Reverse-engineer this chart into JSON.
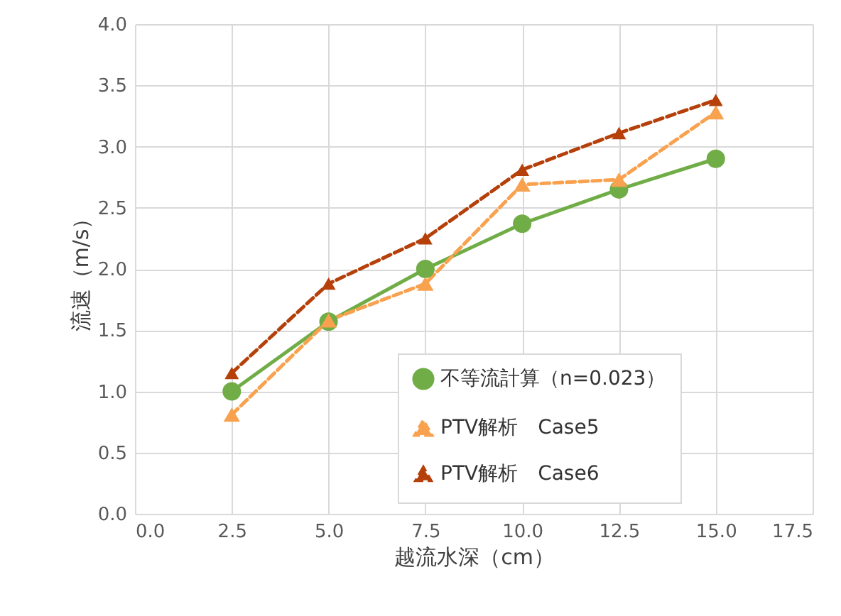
{
  "chart_data": {
    "type": "line",
    "xlabel": "越流水深（cm）",
    "ylabel": "流速（m/s）",
    "x": [
      2.5,
      5,
      7.5,
      10,
      12.5,
      15
    ],
    "series": [
      {
        "name": "不等流計算（n=0.023）",
        "color": "#70ad47",
        "values": [
          1.0,
          1.57,
          2.0,
          2.37,
          2.65,
          2.9
        ],
        "marker": "circle",
        "line_style": "solid"
      },
      {
        "name": "PTV解析　Case5",
        "color": "#f8a14e",
        "values": [
          0.81,
          1.58,
          1.88,
          2.69,
          2.73,
          3.28
        ],
        "marker": "triangle",
        "line_style": "dashed"
      },
      {
        "name": "PTV解析　Case6",
        "color": "#b5400a",
        "values": [
          1.15,
          1.88,
          2.25,
          2.81,
          3.11,
          3.38
        ],
        "marker": "triangle",
        "line_style": "dashed"
      }
    ],
    "xlim": [
      0,
      17.5
    ],
    "xticks": [
      {
        "value": 0,
        "label": "0.0"
      },
      2.5,
      {
        "value": 5,
        "label": "5.0"
      },
      7.5,
      {
        "value": 10,
        "label": "10.0"
      },
      12.5,
      {
        "value": 15,
        "label": "15.0"
      },
      17.5
    ],
    "ylim": [
      0,
      4
    ],
    "yticks": [
      {
        "value": 0,
        "label": "0.0"
      },
      0.5,
      {
        "value": 1,
        "label": "1.0"
      },
      1.5,
      {
        "value": 2,
        "label": "2.0"
      },
      2.5,
      {
        "value": 3,
        "label": "3.0"
      },
      3.5,
      {
        "value": 4,
        "label": "4.0"
      }
    ],
    "grid": true,
    "legend": "bottom right"
  }
}
